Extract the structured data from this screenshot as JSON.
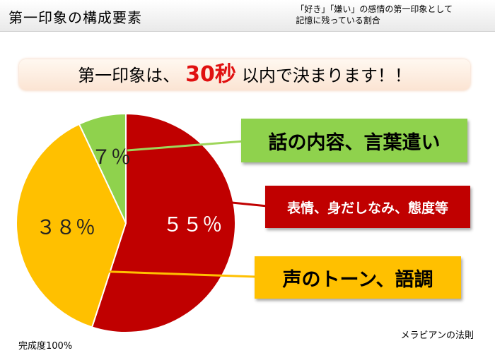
{
  "header": {
    "title": "第一印象の構成要素",
    "subtitle_lines": [
      "「好き」「嫌い」の感情の第一印象として",
      "記憶に残っている割合"
    ]
  },
  "banner": {
    "prefix": "第一印象は、",
    "highlight": "30秒",
    "suffix": "以内で決まります！！"
  },
  "chart_data": {
    "type": "pie",
    "slices": [
      {
        "value": 55,
        "label": "５５％",
        "category": "表情、身だしなみ、態度等",
        "color": "#c00000"
      },
      {
        "value": 38,
        "label": "３８％",
        "category": "声のトーン、語調",
        "color": "#ffc000"
      },
      {
        "value": 7,
        "label": "７％",
        "category": "話の内容、言葉遣い",
        "color": "#8fd24d"
      }
    ]
  },
  "callouts": {
    "green": "話の内容、言葉遣い",
    "red": "表情、身だしなみ、態度等",
    "yellow": "声のトーン、語調"
  },
  "footer": {
    "left": "完成度100%",
    "right": "メラビアンの法則"
  }
}
